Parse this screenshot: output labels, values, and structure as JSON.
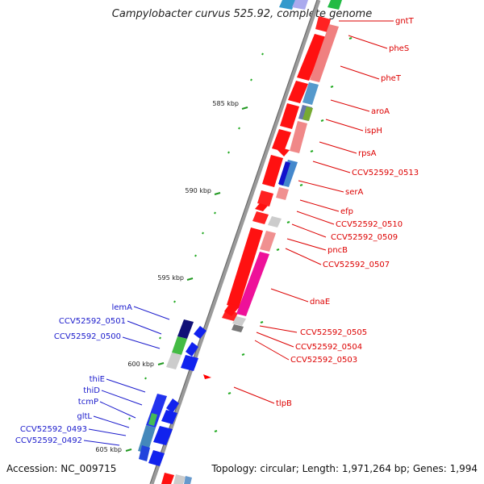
{
  "header": {
    "title": "Campylobacter curvus 525.92, complete genome"
  },
  "footer": {
    "accession": "Accession: NC_009715",
    "summary": "Topology: circular; Length: 1,971,264 bp; Genes: 1,994"
  },
  "colors": {
    "forward_label": "#dd0000",
    "reverse_label": "#1a1acc",
    "tick": "#229922",
    "backbone": "#777777"
  },
  "scale_labels": [
    "585 kbp",
    "590 kbp",
    "595 kbp",
    "600 kbp",
    "605 kbp"
  ],
  "forward_genes": [
    "gntT",
    "pheS",
    "pheT",
    "aroA",
    "ispH",
    "rpsA",
    "CCV52592_0513",
    "serA",
    "efp",
    "CCV52592_0510",
    "CCV52592_0509",
    "pncB",
    "CCV52592_0507",
    "dnaE",
    "CCV52592_0505",
    "CCV52592_0504",
    "CCV52592_0503",
    "tlpB"
  ],
  "reverse_genes": [
    "lemA",
    "CCV52592_0501",
    "CCV52592_0500",
    "thiE",
    "thiD",
    "tcmP",
    "gltL",
    "CCV52592_0493",
    "CCV52592_0492"
  ]
}
